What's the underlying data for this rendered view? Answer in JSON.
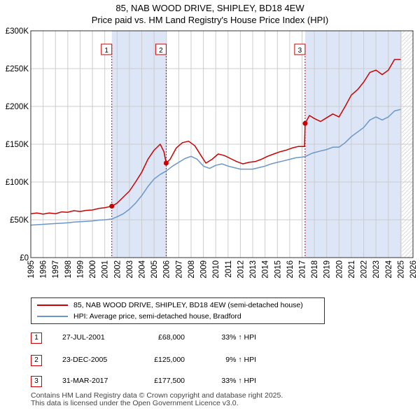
{
  "header": {
    "title": "85, NAB WOOD DRIVE, SHIPLEY, BD18 4EW",
    "subtitle": "Price paid vs. HM Land Registry's House Price Index (HPI)"
  },
  "colors": {
    "property": "#cc0000",
    "hpi": "#6b96c8",
    "shade": "#dde6f7",
    "grid": "#cccccc",
    "hatch": "#bbbbbb"
  },
  "chart_data": {
    "type": "line",
    "xlim": [
      1995,
      2026
    ],
    "ylim": [
      0,
      300000
    ],
    "x_ticks": [
      1995,
      1996,
      1997,
      1998,
      1999,
      2000,
      2001,
      2002,
      2003,
      2004,
      2005,
      2006,
      2007,
      2008,
      2009,
      2010,
      2011,
      2012,
      2013,
      2014,
      2015,
      2016,
      2017,
      2018,
      2019,
      2020,
      2021,
      2022,
      2023,
      2024,
      2025,
      2026
    ],
    "y_ticks": [
      0,
      50000,
      100000,
      150000,
      200000,
      250000,
      300000
    ],
    "y_tick_labels": [
      "£0",
      "£50K",
      "£100K",
      "£150K",
      "£200K",
      "£250K",
      "£300K"
    ],
    "grid": true,
    "series": [
      {
        "name": "85, NAB WOOD DRIVE, SHIPLEY, BD18 4EW (semi-detached house)",
        "color": "#cc0000",
        "points": [
          [
            1995.0,
            58000
          ],
          [
            1995.5,
            59000
          ],
          [
            1996.0,
            57500
          ],
          [
            1996.5,
            59000
          ],
          [
            1997.0,
            58000
          ],
          [
            1997.5,
            60500
          ],
          [
            1998.0,
            60000
          ],
          [
            1998.5,
            62000
          ],
          [
            1999.0,
            61000
          ],
          [
            1999.5,
            62500
          ],
          [
            2000.0,
            63000
          ],
          [
            2000.5,
            65000
          ],
          [
            2001.0,
            66000
          ],
          [
            2001.57,
            68000
          ],
          [
            2002.0,
            72000
          ],
          [
            2002.5,
            80000
          ],
          [
            2003.0,
            88000
          ],
          [
            2003.5,
            100000
          ],
          [
            2004.0,
            113000
          ],
          [
            2004.5,
            130000
          ],
          [
            2005.0,
            142000
          ],
          [
            2005.5,
            150000
          ],
          [
            2005.8,
            140000
          ],
          [
            2005.98,
            125000
          ],
          [
            2006.3,
            130000
          ],
          [
            2006.8,
            145000
          ],
          [
            2007.3,
            152000
          ],
          [
            2007.8,
            154000
          ],
          [
            2008.3,
            148000
          ],
          [
            2008.8,
            135000
          ],
          [
            2009.2,
            125000
          ],
          [
            2009.7,
            130000
          ],
          [
            2010.2,
            137000
          ],
          [
            2010.7,
            135000
          ],
          [
            2011.2,
            131000
          ],
          [
            2011.7,
            127000
          ],
          [
            2012.2,
            124000
          ],
          [
            2012.7,
            126000
          ],
          [
            2013.2,
            127000
          ],
          [
            2013.7,
            130000
          ],
          [
            2014.2,
            134000
          ],
          [
            2014.7,
            137000
          ],
          [
            2015.2,
            140000
          ],
          [
            2015.7,
            142000
          ],
          [
            2016.2,
            145000
          ],
          [
            2016.7,
            147000
          ],
          [
            2017.2,
            147000
          ],
          [
            2017.25,
            177500
          ],
          [
            2017.6,
            188000
          ],
          [
            2018.0,
            184000
          ],
          [
            2018.5,
            180000
          ],
          [
            2019.0,
            185000
          ],
          [
            2019.5,
            190000
          ],
          [
            2020.0,
            186000
          ],
          [
            2020.5,
            200000
          ],
          [
            2021.0,
            215000
          ],
          [
            2021.5,
            222000
          ],
          [
            2022.0,
            232000
          ],
          [
            2022.5,
            245000
          ],
          [
            2023.0,
            248000
          ],
          [
            2023.5,
            242000
          ],
          [
            2024.0,
            248000
          ],
          [
            2024.5,
            262000
          ],
          [
            2025.0,
            262000
          ]
        ]
      },
      {
        "name": "HPI: Average price, semi-detached house, Bradford",
        "color": "#6b96c8",
        "points": [
          [
            1995.0,
            43000
          ],
          [
            1995.5,
            43500
          ],
          [
            1996.0,
            44000
          ],
          [
            1996.5,
            44500
          ],
          [
            1997.0,
            45000
          ],
          [
            1997.5,
            45500
          ],
          [
            1998.0,
            46000
          ],
          [
            1998.5,
            47000
          ],
          [
            1999.0,
            47500
          ],
          [
            1999.5,
            48000
          ],
          [
            2000.0,
            48500
          ],
          [
            2000.5,
            49500
          ],
          [
            2001.0,
            50000
          ],
          [
            2001.57,
            51000
          ],
          [
            2002.0,
            54000
          ],
          [
            2002.5,
            58000
          ],
          [
            2003.0,
            64000
          ],
          [
            2003.5,
            72000
          ],
          [
            2004.0,
            82000
          ],
          [
            2004.5,
            94000
          ],
          [
            2005.0,
            104000
          ],
          [
            2005.5,
            110000
          ],
          [
            2005.98,
            114500
          ],
          [
            2006.5,
            121000
          ],
          [
            2007.0,
            126000
          ],
          [
            2007.5,
            131000
          ],
          [
            2008.0,
            134000
          ],
          [
            2008.5,
            130000
          ],
          [
            2009.0,
            121000
          ],
          [
            2009.5,
            118000
          ],
          [
            2010.0,
            122000
          ],
          [
            2010.5,
            124000
          ],
          [
            2011.0,
            121000
          ],
          [
            2011.5,
            119000
          ],
          [
            2012.0,
            117000
          ],
          [
            2012.5,
            117000
          ],
          [
            2013.0,
            117000
          ],
          [
            2013.5,
            119000
          ],
          [
            2014.0,
            121000
          ],
          [
            2014.5,
            124000
          ],
          [
            2015.0,
            126000
          ],
          [
            2015.5,
            128000
          ],
          [
            2016.0,
            130000
          ],
          [
            2016.5,
            132000
          ],
          [
            2017.0,
            133000
          ],
          [
            2017.25,
            133500
          ],
          [
            2017.8,
            138000
          ],
          [
            2018.5,
            141000
          ],
          [
            2019.0,
            143000
          ],
          [
            2019.5,
            146000
          ],
          [
            2020.0,
            146000
          ],
          [
            2020.5,
            152000
          ],
          [
            2021.0,
            160000
          ],
          [
            2021.5,
            166000
          ],
          [
            2022.0,
            172000
          ],
          [
            2022.5,
            182000
          ],
          [
            2023.0,
            186000
          ],
          [
            2023.5,
            182000
          ],
          [
            2024.0,
            186000
          ],
          [
            2024.5,
            194000
          ],
          [
            2025.0,
            196000
          ]
        ]
      }
    ],
    "sales": [
      {
        "n": "1",
        "x": 2001.57,
        "price": 68000
      },
      {
        "n": "2",
        "x": 2005.98,
        "price": 125000
      },
      {
        "n": "3",
        "x": 2017.25,
        "price": 177500
      }
    ],
    "future_from": 2025.1
  },
  "legend": {
    "property_label": "85, NAB WOOD DRIVE, SHIPLEY, BD18 4EW (semi-detached house)",
    "hpi_label": "HPI: Average price, semi-detached house, Bradford"
  },
  "sales_table": [
    {
      "n": "1",
      "date": "27-JUL-2001",
      "price": "£68,000",
      "hpi": "33% ↑ HPI"
    },
    {
      "n": "2",
      "date": "23-DEC-2005",
      "price": "£125,000",
      "hpi": "9% ↑ HPI"
    },
    {
      "n": "3",
      "date": "31-MAR-2017",
      "price": "£177,500",
      "hpi": "33% ↑ HPI"
    }
  ],
  "footer": {
    "line1": "Contains HM Land Registry data © Crown copyright and database right 2025.",
    "line2": "This data is licensed under the Open Government Licence v3.0."
  }
}
